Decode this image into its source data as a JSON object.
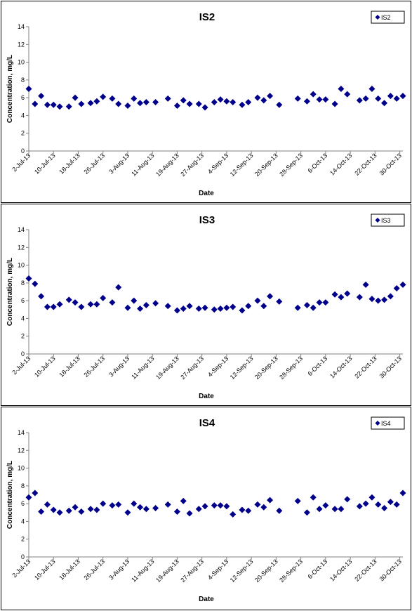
{
  "chart_data": [
    {
      "type": "scatter",
      "title": "IS2",
      "xlabel": "Date",
      "ylabel": "Concentration, mg/L",
      "ylim": [
        0,
        14
      ],
      "yticks": [
        "0",
        "2",
        "4",
        "6",
        "8",
        "10",
        "12",
        "14"
      ],
      "xlim": [
        "2-Jul-13",
        "31-Oct-13"
      ],
      "xticks": [
        "2-Jul-13",
        "10-Jul-13",
        "18-Jul-13",
        "26-Jul-13",
        "3-Aug-13",
        "11-Aug-13",
        "19-Aug-13",
        "27-Aug-13",
        "4-Sep-13",
        "12-Sep-13",
        "20-Sep-13",
        "28-Sep-13",
        "6-Oct-13",
        "14-Oct-13",
        "22-Oct-13",
        "30-Oct-13"
      ],
      "grid": false,
      "legend_position": "top-right",
      "marker_color": "#00008b",
      "series": [
        {
          "name": "IS2",
          "points": [
            [
              "2-Jul-13",
              7.0
            ],
            [
              "4-Jul-13",
              5.3
            ],
            [
              "6-Jul-13",
              6.2
            ],
            [
              "8-Jul-13",
              5.2
            ],
            [
              "10-Jul-13",
              5.2
            ],
            [
              "12-Jul-13",
              5.0
            ],
            [
              "15-Jul-13",
              5.0
            ],
            [
              "17-Jul-13",
              6.0
            ],
            [
              "19-Jul-13",
              5.3
            ],
            [
              "22-Jul-13",
              5.4
            ],
            [
              "24-Jul-13",
              5.6
            ],
            [
              "26-Jul-13",
              6.1
            ],
            [
              "29-Jul-13",
              5.9
            ],
            [
              "31-Jul-13",
              5.3
            ],
            [
              "3-Aug-13",
              5.1
            ],
            [
              "5-Aug-13",
              5.9
            ],
            [
              "7-Aug-13",
              5.4
            ],
            [
              "9-Aug-13",
              5.5
            ],
            [
              "12-Aug-13",
              5.5
            ],
            [
              "16-Aug-13",
              5.9
            ],
            [
              "19-Aug-13",
              5.1
            ],
            [
              "21-Aug-13",
              5.7
            ],
            [
              "23-Aug-13",
              5.3
            ],
            [
              "26-Aug-13",
              5.3
            ],
            [
              "28-Aug-13",
              4.9
            ],
            [
              "31-Aug-13",
              5.5
            ],
            [
              "2-Sep-13",
              5.8
            ],
            [
              "4-Sep-13",
              5.6
            ],
            [
              "6-Sep-13",
              5.5
            ],
            [
              "9-Sep-13",
              5.2
            ],
            [
              "11-Sep-13",
              5.5
            ],
            [
              "14-Sep-13",
              6.0
            ],
            [
              "16-Sep-13",
              5.7
            ],
            [
              "18-Sep-13",
              6.2
            ],
            [
              "21-Sep-13",
              5.2
            ],
            [
              "27-Sep-13",
              5.9
            ],
            [
              "30-Sep-13",
              5.6
            ],
            [
              "2-Oct-13",
              6.4
            ],
            [
              "4-Oct-13",
              5.8
            ],
            [
              "6-Oct-13",
              5.8
            ],
            [
              "9-Oct-13",
              5.3
            ],
            [
              "11-Oct-13",
              7.0
            ],
            [
              "13-Oct-13",
              6.4
            ],
            [
              "17-Oct-13",
              5.7
            ],
            [
              "19-Oct-13",
              5.9
            ],
            [
              "21-Oct-13",
              7.0
            ],
            [
              "23-Oct-13",
              5.9
            ],
            [
              "25-Oct-13",
              5.4
            ],
            [
              "27-Oct-13",
              6.2
            ],
            [
              "29-Oct-13",
              5.9
            ],
            [
              "31-Oct-13",
              6.2
            ]
          ]
        }
      ]
    },
    {
      "type": "scatter",
      "title": "IS3",
      "xlabel": "Date",
      "ylabel": "Concentration, mg/L",
      "ylim": [
        0,
        14
      ],
      "yticks": [
        "0",
        "2",
        "4",
        "6",
        "8",
        "10",
        "12",
        "14"
      ],
      "xlim": [
        "2-Jul-13",
        "31-Oct-13"
      ],
      "xticks": [
        "2-Jul-13",
        "10-Jul-13",
        "18-Jul-13",
        "26-Jul-13",
        "3-Aug-13",
        "11-Aug-13",
        "19-Aug-13",
        "27-Aug-13",
        "4-Sep-13",
        "12-Sep-13",
        "20-Sep-13",
        "28-Sep-13",
        "6-Oct-13",
        "14-Oct-13",
        "22-Oct-13",
        "30-Oct-13"
      ],
      "grid": false,
      "legend_position": "top-right",
      "marker_color": "#00008b",
      "series": [
        {
          "name": "IS3",
          "points": [
            [
              "2-Jul-13",
              8.5
            ],
            [
              "4-Jul-13",
              7.9
            ],
            [
              "6-Jul-13",
              6.5
            ],
            [
              "8-Jul-13",
              5.3
            ],
            [
              "10-Jul-13",
              5.3
            ],
            [
              "12-Jul-13",
              5.6
            ],
            [
              "15-Jul-13",
              6.1
            ],
            [
              "17-Jul-13",
              5.8
            ],
            [
              "19-Jul-13",
              5.3
            ],
            [
              "22-Jul-13",
              5.6
            ],
            [
              "24-Jul-13",
              5.6
            ],
            [
              "26-Jul-13",
              6.3
            ],
            [
              "29-Jul-13",
              5.8
            ],
            [
              "31-Jul-13",
              7.5
            ],
            [
              "3-Aug-13",
              5.2
            ],
            [
              "5-Aug-13",
              6.0
            ],
            [
              "7-Aug-13",
              5.1
            ],
            [
              "9-Aug-13",
              5.5
            ],
            [
              "12-Aug-13",
              5.7
            ],
            [
              "16-Aug-13",
              5.4
            ],
            [
              "19-Aug-13",
              4.9
            ],
            [
              "21-Aug-13",
              5.1
            ],
            [
              "23-Aug-13",
              5.4
            ],
            [
              "26-Aug-13",
              5.1
            ],
            [
              "28-Aug-13",
              5.2
            ],
            [
              "31-Aug-13",
              5.0
            ],
            [
              "2-Sep-13",
              5.1
            ],
            [
              "4-Sep-13",
              5.2
            ],
            [
              "6-Sep-13",
              5.3
            ],
            [
              "9-Sep-13",
              4.9
            ],
            [
              "11-Sep-13",
              5.4
            ],
            [
              "14-Sep-13",
              6.0
            ],
            [
              "16-Sep-13",
              5.4
            ],
            [
              "18-Sep-13",
              6.5
            ],
            [
              "21-Sep-13",
              5.9
            ],
            [
              "27-Sep-13",
              5.2
            ],
            [
              "30-Sep-13",
              5.5
            ],
            [
              "2-Oct-13",
              5.2
            ],
            [
              "4-Oct-13",
              5.8
            ],
            [
              "6-Oct-13",
              5.8
            ],
            [
              "9-Oct-13",
              6.7
            ],
            [
              "11-Oct-13",
              6.4
            ],
            [
              "13-Oct-13",
              6.8
            ],
            [
              "17-Oct-13",
              6.4
            ],
            [
              "19-Oct-13",
              7.8
            ],
            [
              "21-Oct-13",
              6.2
            ],
            [
              "23-Oct-13",
              6.0
            ],
            [
              "25-Oct-13",
              6.1
            ],
            [
              "27-Oct-13",
              6.5
            ],
            [
              "29-Oct-13",
              7.4
            ],
            [
              "31-Oct-13",
              7.8
            ]
          ]
        }
      ]
    },
    {
      "type": "scatter",
      "title": "IS4",
      "xlabel": "Date",
      "ylabel": "Concentration, mg/L",
      "ylim": [
        0,
        14
      ],
      "yticks": [
        "0",
        "2",
        "4",
        "6",
        "8",
        "10",
        "12",
        "14"
      ],
      "xlim": [
        "2-Jul-13",
        "31-Oct-13"
      ],
      "xticks": [
        "2-Jul-13",
        "10-Jul-13",
        "18-Jul-13",
        "26-Jul-13",
        "3-Aug-13",
        "11-Aug-13",
        "19-Aug-13",
        "27-Aug-13",
        "4-Sep-13",
        "12-Sep-13",
        "20-Sep-13",
        "28-Sep-13",
        "6-Oct-13",
        "14-Oct-13",
        "22-Oct-13",
        "30-Oct-13"
      ],
      "grid": false,
      "legend_position": "top-right",
      "marker_color": "#00008b",
      "series": [
        {
          "name": "IS4",
          "points": [
            [
              "2-Jul-13",
              6.7
            ],
            [
              "4-Jul-13",
              7.2
            ],
            [
              "6-Jul-13",
              5.1
            ],
            [
              "8-Jul-13",
              5.9
            ],
            [
              "10-Jul-13",
              5.3
            ],
            [
              "12-Jul-13",
              5.0
            ],
            [
              "15-Jul-13",
              5.2
            ],
            [
              "17-Jul-13",
              5.6
            ],
            [
              "19-Jul-13",
              5.1
            ],
            [
              "22-Jul-13",
              5.4
            ],
            [
              "24-Jul-13",
              5.3
            ],
            [
              "26-Jul-13",
              6.0
            ],
            [
              "29-Jul-13",
              5.8
            ],
            [
              "31-Jul-13",
              5.9
            ],
            [
              "3-Aug-13",
              5.0
            ],
            [
              "5-Aug-13",
              6.0
            ],
            [
              "7-Aug-13",
              5.6
            ],
            [
              "9-Aug-13",
              5.4
            ],
            [
              "12-Aug-13",
              5.5
            ],
            [
              "16-Aug-13",
              5.9
            ],
            [
              "19-Aug-13",
              5.1
            ],
            [
              "21-Aug-13",
              6.3
            ],
            [
              "23-Aug-13",
              4.9
            ],
            [
              "26-Aug-13",
              5.4
            ],
            [
              "28-Aug-13",
              5.7
            ],
            [
              "31-Aug-13",
              5.8
            ],
            [
              "2-Sep-13",
              5.8
            ],
            [
              "4-Sep-13",
              5.7
            ],
            [
              "6-Sep-13",
              4.8
            ],
            [
              "9-Sep-13",
              5.3
            ],
            [
              "11-Sep-13",
              5.2
            ],
            [
              "14-Sep-13",
              5.9
            ],
            [
              "16-Sep-13",
              5.6
            ],
            [
              "18-Sep-13",
              6.4
            ],
            [
              "21-Sep-13",
              5.2
            ],
            [
              "27-Sep-13",
              6.3
            ],
            [
              "30-Sep-13",
              5.0
            ],
            [
              "2-Oct-13",
              6.7
            ],
            [
              "4-Oct-13",
              5.4
            ],
            [
              "6-Oct-13",
              5.8
            ],
            [
              "9-Oct-13",
              5.4
            ],
            [
              "11-Oct-13",
              5.4
            ],
            [
              "13-Oct-13",
              6.5
            ],
            [
              "17-Oct-13",
              5.7
            ],
            [
              "19-Oct-13",
              6.0
            ],
            [
              "21-Oct-13",
              6.7
            ],
            [
              "23-Oct-13",
              5.9
            ],
            [
              "25-Oct-13",
              5.5
            ],
            [
              "27-Oct-13",
              6.2
            ],
            [
              "29-Oct-13",
              5.9
            ],
            [
              "31-Oct-13",
              7.2
            ]
          ]
        }
      ]
    }
  ]
}
